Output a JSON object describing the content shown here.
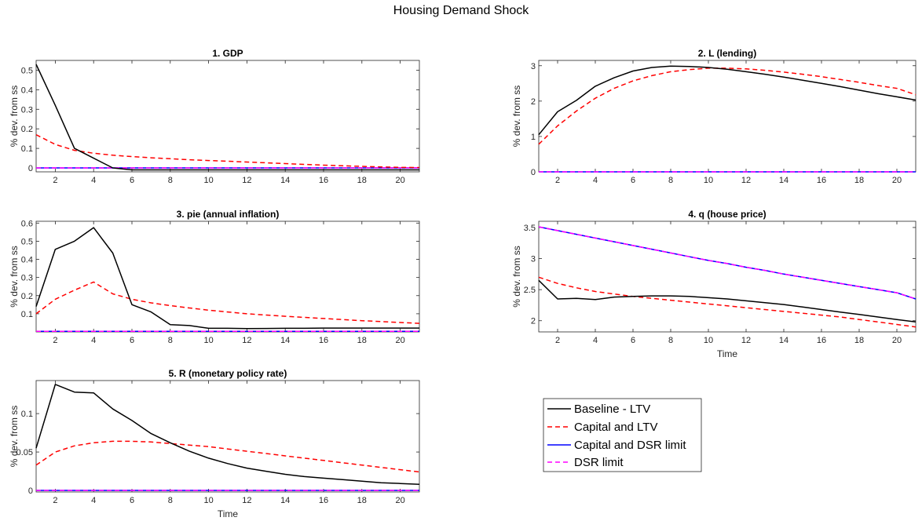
{
  "figure_title": "Housing Demand Shock",
  "legend": {
    "entries": [
      {
        "label": "Baseline - LTV",
        "color": "#000000",
        "dash": "solid"
      },
      {
        "label": "Capital and LTV",
        "color": "#ff0000",
        "dash": "dashed"
      },
      {
        "label": "Capital and DSR limit",
        "color": "#0000ff",
        "dash": "solid"
      },
      {
        "label": "DSR limit",
        "color": "#ff00ff",
        "dash": "dashed"
      }
    ]
  },
  "chart_data": [
    {
      "type": "line",
      "title": "1. GDP",
      "xlabel": "",
      "ylabel": "% dev. from ss",
      "xlim": [
        1,
        21
      ],
      "ylim": [
        -0.02,
        0.55
      ],
      "xticks": [
        2,
        4,
        6,
        8,
        10,
        12,
        14,
        16,
        18,
        20
      ],
      "yticks": [
        0,
        0.1,
        0.2,
        0.3,
        0.4,
        0.5
      ],
      "ytick_labels": [
        "0",
        "0.1",
        "0.2",
        "0.3",
        "0.4",
        "0.5"
      ],
      "x": [
        1,
        2,
        3,
        4,
        5,
        6,
        7,
        8,
        9,
        10,
        11,
        12,
        13,
        14,
        15,
        16,
        17,
        18,
        19,
        20,
        21
      ],
      "series": [
        {
          "name": "Baseline - LTV",
          "values": [
            0.53,
            0.32,
            0.1,
            0.05,
            0.0,
            -0.01,
            -0.01,
            -0.01,
            -0.01,
            -0.01,
            -0.01,
            -0.01,
            -0.01,
            -0.01,
            -0.01,
            -0.01,
            -0.01,
            -0.01,
            -0.01,
            -0.01,
            -0.01
          ]
        },
        {
          "name": "Capital and LTV",
          "values": [
            0.17,
            0.12,
            0.09,
            0.075,
            0.065,
            0.058,
            0.052,
            0.047,
            0.042,
            0.038,
            0.034,
            0.03,
            0.026,
            0.022,
            0.018,
            0.014,
            0.011,
            0.008,
            0.005,
            0.003,
            0.002
          ]
        },
        {
          "name": "Capital and DSR limit",
          "values": [
            0,
            0,
            0,
            0,
            0,
            0,
            0,
            0,
            0,
            0,
            0,
            0,
            0,
            0,
            0,
            0,
            0,
            0,
            0,
            0,
            0
          ]
        },
        {
          "name": "DSR limit",
          "values": [
            0,
            0,
            0,
            0,
            0,
            0,
            0,
            0,
            0,
            0,
            0,
            0,
            0,
            0,
            0,
            0,
            0,
            0,
            0,
            0,
            0
          ]
        }
      ]
    },
    {
      "type": "line",
      "title": "2. L (lending)",
      "xlabel": "",
      "ylabel": "% dev. from ss",
      "xlim": [
        1,
        21
      ],
      "ylim": [
        0,
        3.15
      ],
      "xticks": [
        2,
        4,
        6,
        8,
        10,
        12,
        14,
        16,
        18,
        20
      ],
      "yticks": [
        0,
        1,
        2,
        3
      ],
      "ytick_labels": [
        "0",
        "1",
        "2",
        "3"
      ],
      "x": [
        1,
        2,
        3,
        4,
        5,
        6,
        7,
        8,
        9,
        10,
        11,
        12,
        13,
        14,
        15,
        16,
        17,
        18,
        19,
        20,
        21
      ],
      "series": [
        {
          "name": "Baseline - LTV",
          "values": [
            1.05,
            1.7,
            2.02,
            2.42,
            2.66,
            2.85,
            2.95,
            2.99,
            2.98,
            2.95,
            2.9,
            2.83,
            2.76,
            2.68,
            2.59,
            2.5,
            2.41,
            2.31,
            2.21,
            2.12,
            2.03
          ]
        },
        {
          "name": "Capital and LTV",
          "values": [
            0.78,
            1.3,
            1.72,
            2.08,
            2.36,
            2.57,
            2.72,
            2.83,
            2.89,
            2.93,
            2.93,
            2.91,
            2.87,
            2.82,
            2.76,
            2.69,
            2.61,
            2.53,
            2.44,
            2.36,
            2.18
          ]
        },
        {
          "name": "Capital and DSR limit",
          "values": [
            0,
            0,
            0,
            0,
            0,
            0,
            0,
            0,
            0,
            0,
            0,
            0,
            0,
            0,
            0,
            0,
            0,
            0,
            0,
            0,
            0
          ]
        },
        {
          "name": "DSR limit",
          "values": [
            0,
            0,
            0,
            0,
            0,
            0,
            0,
            0,
            0,
            0,
            0,
            0,
            0,
            0,
            0,
            0,
            0,
            0,
            0,
            0,
            0
          ]
        }
      ]
    },
    {
      "type": "line",
      "title": "3. pie (annual inflation)",
      "xlabel": "",
      "ylabel": "% dev. from ss",
      "xlim": [
        1,
        21
      ],
      "ylim": [
        0.0,
        0.61
      ],
      "xticks": [
        2,
        4,
        6,
        8,
        10,
        12,
        14,
        16,
        18,
        20
      ],
      "yticks": [
        0.1,
        0.2,
        0.3,
        0.4,
        0.5,
        0.6
      ],
      "ytick_labels": [
        "0.1",
        "0.2",
        "0.3",
        "0.4",
        "0.5",
        "0.6"
      ],
      "x": [
        1,
        2,
        3,
        4,
        5,
        6,
        7,
        8,
        9,
        10,
        11,
        12,
        13,
        14,
        15,
        16,
        17,
        18,
        19,
        20,
        21
      ],
      "series": [
        {
          "name": "Baseline - LTV",
          "values": [
            0.14,
            0.455,
            0.5,
            0.575,
            0.435,
            0.15,
            0.11,
            0.04,
            0.035,
            0.02,
            0.02,
            0.018,
            0.019,
            0.02,
            0.02,
            0.021,
            0.021,
            0.021,
            0.021,
            0.021,
            0.021
          ]
        },
        {
          "name": "Capital and LTV",
          "values": [
            0.1,
            0.18,
            0.23,
            0.275,
            0.21,
            0.18,
            0.16,
            0.145,
            0.132,
            0.12,
            0.11,
            0.1,
            0.093,
            0.086,
            0.08,
            0.074,
            0.068,
            0.062,
            0.057,
            0.052,
            0.047
          ]
        },
        {
          "name": "Capital and DSR limit",
          "values": [
            0.003,
            0.003,
            0.003,
            0.003,
            0.003,
            0.003,
            0.003,
            0.003,
            0.003,
            0.003,
            0.003,
            0.003,
            0.003,
            0.003,
            0.003,
            0.003,
            0.003,
            0.003,
            0.003,
            0.003,
            0.003
          ]
        },
        {
          "name": "DSR limit",
          "values": [
            0.003,
            0.003,
            0.003,
            0.003,
            0.003,
            0.003,
            0.003,
            0.003,
            0.003,
            0.003,
            0.003,
            0.003,
            0.003,
            0.003,
            0.003,
            0.003,
            0.003,
            0.003,
            0.003,
            0.003,
            0.003
          ]
        }
      ]
    },
    {
      "type": "line",
      "title": "4. q (house price)",
      "xlabel": "Time",
      "ylabel": "% dev. from ss",
      "xlim": [
        1,
        21
      ],
      "ylim": [
        1.82,
        3.6
      ],
      "xticks": [
        2,
        4,
        6,
        8,
        10,
        12,
        14,
        16,
        18,
        20
      ],
      "yticks": [
        2,
        2.5,
        3,
        3.5
      ],
      "ytick_labels": [
        "2",
        "2.5",
        "3",
        "3.5"
      ],
      "x": [
        1,
        2,
        3,
        4,
        5,
        6,
        7,
        8,
        9,
        10,
        11,
        12,
        13,
        14,
        15,
        16,
        17,
        18,
        19,
        20,
        21
      ],
      "series": [
        {
          "name": "Baseline - LTV",
          "values": [
            2.65,
            2.35,
            2.36,
            2.34,
            2.38,
            2.39,
            2.4,
            2.4,
            2.39,
            2.37,
            2.35,
            2.32,
            2.29,
            2.26,
            2.22,
            2.18,
            2.14,
            2.1,
            2.06,
            2.02,
            1.98
          ]
        },
        {
          "name": "Capital and LTV",
          "values": [
            2.7,
            2.6,
            2.53,
            2.47,
            2.43,
            2.39,
            2.36,
            2.33,
            2.3,
            2.27,
            2.24,
            2.21,
            2.18,
            2.15,
            2.12,
            2.09,
            2.06,
            2.02,
            1.98,
            1.94,
            1.9
          ]
        },
        {
          "name": "Capital and DSR limit",
          "values": [
            3.51,
            3.45,
            3.39,
            3.33,
            3.27,
            3.21,
            3.15,
            3.09,
            3.03,
            2.97,
            2.92,
            2.86,
            2.81,
            2.75,
            2.7,
            2.65,
            2.6,
            2.55,
            2.5,
            2.45,
            2.35
          ]
        },
        {
          "name": "DSR limit",
          "values": [
            3.51,
            3.45,
            3.39,
            3.33,
            3.27,
            3.21,
            3.15,
            3.09,
            3.03,
            2.97,
            2.92,
            2.86,
            2.81,
            2.75,
            2.7,
            2.65,
            2.6,
            2.55,
            2.5,
            2.45,
            2.35
          ]
        }
      ]
    },
    {
      "type": "line",
      "title": "5. R (monetary policy rate)",
      "xlabel": "Time",
      "ylabel": "% dev. from ss",
      "xlim": [
        1,
        21
      ],
      "ylim": [
        -0.002,
        0.143
      ],
      "xticks": [
        2,
        4,
        6,
        8,
        10,
        12,
        14,
        16,
        18,
        20
      ],
      "yticks": [
        0,
        0.05,
        0.1
      ],
      "ytick_labels": [
        "0",
        "0.05",
        "0.1"
      ],
      "x": [
        1,
        2,
        3,
        4,
        5,
        6,
        7,
        8,
        9,
        10,
        11,
        12,
        13,
        14,
        15,
        16,
        17,
        18,
        19,
        20,
        21
      ],
      "series": [
        {
          "name": "Baseline - LTV",
          "values": [
            0.055,
            0.138,
            0.128,
            0.127,
            0.106,
            0.091,
            0.074,
            0.062,
            0.051,
            0.042,
            0.035,
            0.029,
            0.025,
            0.021,
            0.018,
            0.016,
            0.014,
            0.012,
            0.01,
            0.009,
            0.008
          ]
        },
        {
          "name": "Capital and LTV",
          "values": [
            0.033,
            0.05,
            0.058,
            0.062,
            0.064,
            0.064,
            0.063,
            0.061,
            0.059,
            0.057,
            0.054,
            0.051,
            0.048,
            0.045,
            0.042,
            0.039,
            0.036,
            0.033,
            0.03,
            0.027,
            0.024
          ]
        },
        {
          "name": "Capital and DSR limit",
          "values": [
            0,
            0,
            0,
            0,
            0,
            0,
            0,
            0,
            0,
            0,
            0,
            0,
            0,
            0,
            0,
            0,
            0,
            0,
            0,
            0,
            0
          ]
        },
        {
          "name": "DSR limit",
          "values": [
            0,
            0,
            0,
            0,
            0,
            0,
            0,
            0,
            0,
            0,
            0,
            0,
            0,
            0,
            0,
            0,
            0,
            0,
            0,
            0,
            0
          ]
        }
      ]
    }
  ]
}
